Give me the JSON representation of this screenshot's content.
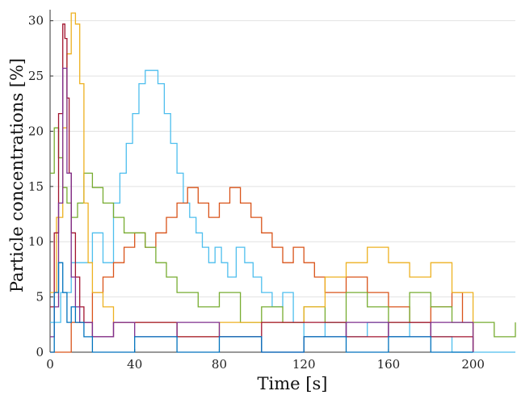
{
  "chart_data": {
    "type": "line",
    "title": "",
    "xlabel": "Time [s]",
    "ylabel": "Particle concentrations [%]",
    "xlim": [
      0,
      220
    ],
    "ylim": [
      0,
      31
    ],
    "x_ticks": [
      0,
      40,
      80,
      120,
      160,
      200
    ],
    "y_ticks": [
      0,
      5,
      10,
      15,
      20,
      25,
      30
    ],
    "x_tick_labels": [
      "0",
      "40",
      "80",
      "120",
      "160",
      "200"
    ],
    "y_tick_labels": [
      "0",
      "5",
      "10",
      "15",
      "20",
      "25",
      "30"
    ],
    "grid": "horizontal",
    "legend": "none",
    "line_style": "step",
    "series": [
      {
        "color": "#4DBEEE",
        "x": [
          0,
          5,
          10,
          15,
          20,
          25,
          30,
          33,
          36,
          39,
          42,
          45,
          48,
          51,
          54,
          57,
          60,
          63,
          66,
          69,
          72,
          75,
          78,
          81,
          84,
          88,
          92,
          96,
          100,
          105,
          110,
          115,
          120,
          130,
          140,
          150,
          160,
          170,
          180,
          190,
          200,
          220
        ],
        "y": [
          2.7,
          5.4,
          8.1,
          8.1,
          10.8,
          8.1,
          13.5,
          16.2,
          18.9,
          21.6,
          24.3,
          25.5,
          25.5,
          24.3,
          21.6,
          18.9,
          16.2,
          13.5,
          12.2,
          10.8,
          9.5,
          8.1,
          9.5,
          8.1,
          6.8,
          9.5,
          8.1,
          6.8,
          5.4,
          4.1,
          5.4,
          2.7,
          1.4,
          2.7,
          1.4,
          2.7,
          1.4,
          2.7,
          1.4,
          0,
          0,
          0
        ]
      },
      {
        "color": "#D95319",
        "x": [
          0,
          10,
          20,
          25,
          30,
          35,
          40,
          45,
          50,
          55,
          60,
          65,
          70,
          75,
          80,
          85,
          90,
          95,
          100,
          105,
          110,
          115,
          120,
          125,
          130,
          140,
          150,
          160,
          170,
          180,
          190,
          195,
          200
        ],
        "y": [
          0,
          2.7,
          5.4,
          6.8,
          8.1,
          9.5,
          10.8,
          9.5,
          10.8,
          12.2,
          13.5,
          14.9,
          13.5,
          12.2,
          13.5,
          14.9,
          13.5,
          12.2,
          10.8,
          9.5,
          8.1,
          9.5,
          8.1,
          6.8,
          5.4,
          6.8,
          5.4,
          4.1,
          2.7,
          4.1,
          5.4,
          2.7,
          0
        ]
      },
      {
        "color": "#77AC30",
        "x": [
          0,
          2,
          4,
          6,
          8,
          10,
          13,
          16,
          20,
          25,
          30,
          35,
          40,
          45,
          50,
          55,
          60,
          70,
          80,
          90,
          100,
          110,
          120,
          130,
          140,
          150,
          160,
          170,
          180,
          190,
          200,
          210,
          220
        ],
        "y": [
          16.2,
          20.3,
          17.6,
          14.9,
          13.5,
          12.2,
          13.5,
          16.2,
          14.9,
          13.5,
          12.2,
          10.8,
          10.8,
          9.5,
          8.1,
          6.8,
          5.4,
          4.1,
          5.4,
          2.7,
          4.1,
          2.7,
          4.1,
          2.7,
          5.4,
          4.1,
          2.7,
          5.4,
          4.1,
          2.7,
          2.7,
          1.4,
          2.7
        ]
      },
      {
        "color": "#EDB120",
        "x": [
          0,
          3,
          6,
          8,
          10,
          12,
          14,
          16,
          18,
          20,
          25,
          30,
          40,
          60,
          80,
          100,
          120,
          130,
          140,
          150,
          160,
          170,
          180,
          190,
          200
        ],
        "y": [
          5.4,
          12.2,
          20.3,
          27.0,
          30.7,
          29.7,
          24.3,
          13.5,
          8.1,
          5.4,
          4.1,
          2.7,
          2.7,
          1.4,
          2.7,
          2.7,
          4.1,
          6.8,
          8.1,
          9.5,
          8.1,
          6.8,
          8.1,
          5.4,
          0
        ]
      },
      {
        "color": "#A2142F",
        "x": [
          0,
          2,
          4,
          6,
          7,
          8,
          9,
          10,
          12,
          14,
          16,
          20,
          30,
          60,
          100,
          140,
          160,
          180,
          200
        ],
        "y": [
          4.1,
          10.8,
          21.6,
          29.7,
          28.4,
          23.0,
          16.2,
          10.8,
          6.8,
          4.1,
          2.7,
          1.4,
          2.7,
          1.4,
          2.7,
          1.4,
          2.7,
          1.4,
          0
        ]
      },
      {
        "color": "#7E2F8E",
        "x": [
          0,
          2,
          4,
          6,
          8,
          10,
          12,
          14,
          20,
          30,
          40,
          60,
          80,
          100,
          120,
          140,
          160,
          180,
          200
        ],
        "y": [
          1.4,
          4.1,
          13.5,
          25.7,
          16.2,
          6.8,
          4.1,
          2.7,
          1.4,
          2.7,
          1.4,
          2.7,
          1.4,
          0,
          1.4,
          2.7,
          1.4,
          2.7,
          0
        ]
      },
      {
        "color": "#0072BD",
        "x": [
          0,
          2,
          4,
          6,
          8,
          10,
          12,
          16,
          20,
          40,
          60,
          80,
          100,
          120,
          140,
          160,
          180,
          200
        ],
        "y": [
          0,
          5.4,
          8.1,
          5.4,
          2.7,
          4.1,
          2.7,
          1.4,
          0,
          1.4,
          0,
          1.4,
          0,
          1.4,
          0,
          1.4,
          0,
          0
        ]
      }
    ]
  }
}
